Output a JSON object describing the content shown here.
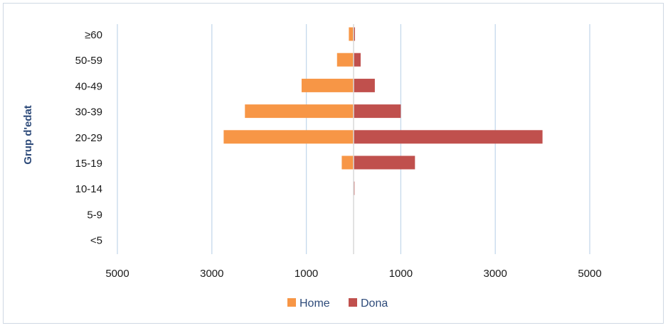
{
  "chart_data": {
    "type": "bar",
    "orientation": "horizontal",
    "subtype": "population-pyramid",
    "categories": [
      "≥60",
      "50-59",
      "40-49",
      "30-39",
      "20-29",
      "15-19",
      "10-14",
      "5-9",
      "<5"
    ],
    "series": [
      {
        "name": "Home",
        "color": "#f79646",
        "side": "left",
        "values": [
          100,
          350,
          1100,
          2300,
          2750,
          250,
          5,
          5,
          5
        ]
      },
      {
        "name": "Dona",
        "color": "#c0504d",
        "side": "right",
        "values": [
          30,
          150,
          450,
          1000,
          4000,
          1300,
          20,
          5,
          5
        ]
      }
    ],
    "ylabel": "Grup d'edat",
    "xlim": [
      -5000,
      5000
    ],
    "x_ticks": [
      {
        "value": -5000,
        "label": "5000"
      },
      {
        "value": -3000,
        "label": "3000"
      },
      {
        "value": -1000,
        "label": "1000"
      },
      {
        "value": 1000,
        "label": "1000"
      },
      {
        "value": 3000,
        "label": "3000"
      },
      {
        "value": 5000,
        "label": "5000"
      }
    ],
    "grid": true,
    "grid_color": "#c5d9ec",
    "legend": {
      "position": "bottom",
      "labels": [
        "Home",
        "Dona"
      ]
    }
  }
}
